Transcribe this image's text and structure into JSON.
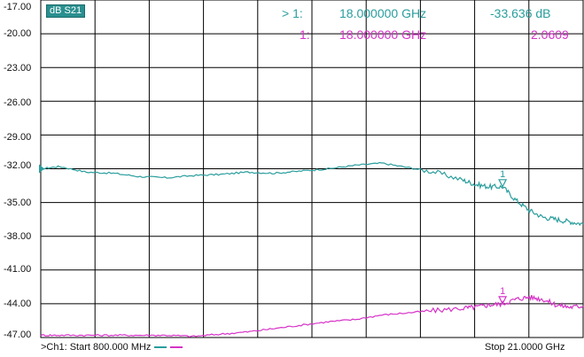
{
  "trace_param": "dB S21",
  "y_axis_labels": [
    "-17.00",
    "-20.00",
    "-23.00",
    "-26.00",
    "-29.00",
    "-32.00",
    "-35.00",
    "-38.00",
    "-41.00",
    "-44.00",
    "-47.00"
  ],
  "marker_readouts": [
    {
      "prefix": "> 1:",
      "freq": "18.000000 GHz",
      "value": "-33.636 dB",
      "color": "#2a9d9d"
    },
    {
      "prefix": "1:",
      "freq": "18.000000 GHz",
      "value": "2.0609",
      "color": "#d633c8"
    }
  ],
  "footer": {
    "start_text": ">Ch1: Start  800.000 MHz",
    "stop_text": "Stop  21.0000 GHz"
  },
  "colors": {
    "trace1": "#2a9d9d",
    "trace2": "#d633c8",
    "grid": "#000000"
  },
  "marker_label": "1",
  "chart_data": {
    "type": "line",
    "x_range_ghz": [
      0.8,
      21.0
    ],
    "y_range_db": [
      -47,
      -17
    ],
    "series": [
      {
        "x": [
          0.8,
          1.5,
          2.5,
          3.5,
          4.5,
          5.5,
          6.5,
          7.5,
          8.5,
          9.5,
          10.5,
          11.5,
          12.5,
          13.5,
          14.5,
          15.5,
          16.5,
          17.0,
          17.5,
          18.0,
          18.5,
          19.0,
          19.5,
          20.0,
          20.5,
          21.0
        ],
        "y": [
          -32.0,
          -31.8,
          -32.3,
          -32.4,
          -32.7,
          -32.8,
          -32.6,
          -32.5,
          -32.3,
          -32.4,
          -32.2,
          -32.0,
          -31.7,
          -31.5,
          -31.9,
          -32.3,
          -33.0,
          -33.4,
          -33.6,
          -33.6,
          -34.8,
          -35.7,
          -36.3,
          -36.5,
          -36.7,
          -36.9
        ]
      },
      {
        "x": [
          0.8,
          1.5,
          2.5,
          3.5,
          4.5,
          5.5,
          6.5,
          7.5,
          8.5,
          9.5,
          10.5,
          11.5,
          12.5,
          13.5,
          14.5,
          15.5,
          16.5,
          17.0,
          17.5,
          18.0,
          18.5,
          19.0,
          19.5,
          20.0,
          20.5,
          21.0
        ],
        "y": [
          -46.8,
          -46.8,
          -46.8,
          -46.8,
          -46.8,
          -46.8,
          -46.9,
          -46.7,
          -46.5,
          -46.2,
          -45.9,
          -45.6,
          -45.4,
          -45.0,
          -44.8,
          -44.6,
          -44.4,
          -44.3,
          -44.1,
          -44.0,
          -43.6,
          -43.4,
          -43.6,
          -44.1,
          -44.3,
          -44.2
        ]
      }
    ]
  }
}
